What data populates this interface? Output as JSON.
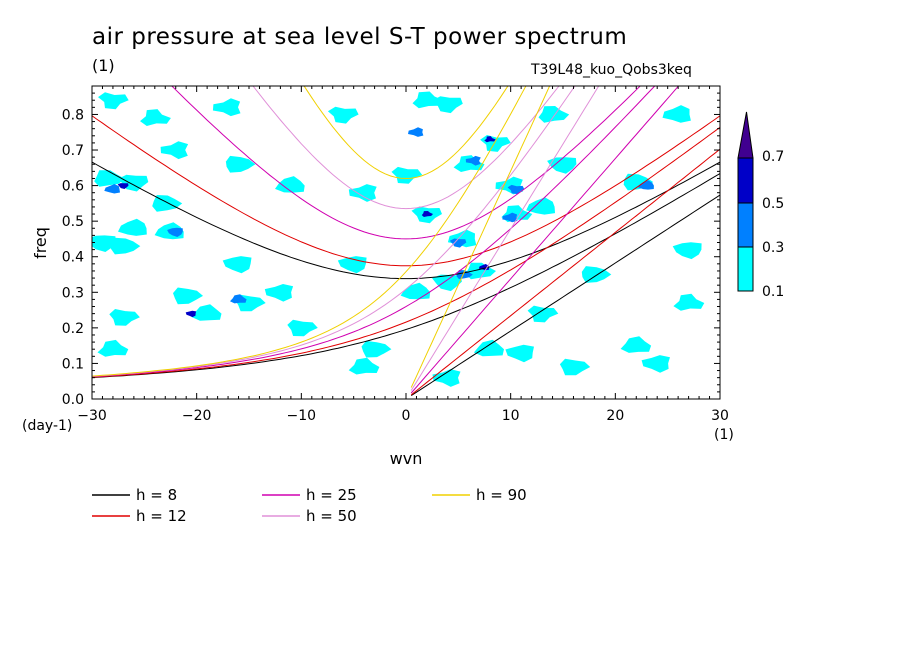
{
  "title": "air pressure at sea level S-T power spectrum",
  "title_unit": "(1)",
  "case_label": "T39L48_kuo_Qobs3keq",
  "chart_data": {
    "type": "heatmap",
    "xlabel": "wvn",
    "ylabel": "freq",
    "x_unit": "(1)",
    "y_unit": "(day-1)",
    "xlim": [
      -30,
      30
    ],
    "ylim": [
      0,
      0.88
    ],
    "x_ticks": [
      -30,
      -20,
      -10,
      0,
      10,
      20,
      30
    ],
    "x_tick_labels": [
      "-30",
      "-20",
      "-10",
      "0",
      "10",
      "20",
      "30"
    ],
    "y_ticks": [
      0,
      0.1,
      0.2,
      0.3,
      0.4,
      0.5,
      0.6,
      0.7,
      0.8
    ],
    "y_tick_labels": [
      "0.0",
      "0.1",
      "0.2",
      "0.3",
      "0.4",
      "0.5",
      "0.6",
      "0.7",
      "0.8"
    ],
    "colorbar": {
      "levels": [
        0.1,
        0.3,
        0.5,
        0.7
      ],
      "level_labels": [
        "0.1",
        "0.3",
        "0.5",
        "0.7"
      ],
      "colors": [
        "#00ffff",
        "#0080ff",
        "#0000c8",
        "#400090"
      ]
    },
    "contour_patches": [
      {
        "x": -28,
        "y": 0.84,
        "level": 1
      },
      {
        "x": -24,
        "y": 0.79,
        "level": 1
      },
      {
        "x": -17,
        "y": 0.82,
        "level": 1
      },
      {
        "x": -6,
        "y": 0.8,
        "level": 1
      },
      {
        "x": 2,
        "y": 0.84,
        "level": 1
      },
      {
        "x": 1,
        "y": 0.75,
        "level": 2
      },
      {
        "x": 4,
        "y": 0.83,
        "level": 1
      },
      {
        "x": 14,
        "y": 0.8,
        "level": 1
      },
      {
        "x": 26,
        "y": 0.8,
        "level": 1
      },
      {
        "x": -26,
        "y": 0.61,
        "level": 1
      },
      {
        "x": -28.5,
        "y": 0.62,
        "level": 1
      },
      {
        "x": -28,
        "y": 0.59,
        "level": 2
      },
      {
        "x": -27,
        "y": 0.6,
        "level": 3
      },
      {
        "x": -23,
        "y": 0.55,
        "level": 1
      },
      {
        "x": -26,
        "y": 0.48,
        "level": 1
      },
      {
        "x": -29,
        "y": 0.44,
        "level": 1
      },
      {
        "x": -27,
        "y": 0.43,
        "level": 1
      },
      {
        "x": -22.5,
        "y": 0.47,
        "level": 1
      },
      {
        "x": -22,
        "y": 0.47,
        "level": 2
      },
      {
        "x": -16,
        "y": 0.66,
        "level": 1
      },
      {
        "x": -11,
        "y": 0.6,
        "level": 1
      },
      {
        "x": -16,
        "y": 0.38,
        "level": 1
      },
      {
        "x": -21,
        "y": 0.29,
        "level": 1
      },
      {
        "x": -19,
        "y": 0.24,
        "level": 1
      },
      {
        "x": -20.5,
        "y": 0.24,
        "level": 3
      },
      {
        "x": -15,
        "y": 0.27,
        "level": 1
      },
      {
        "x": -16,
        "y": 0.28,
        "level": 2
      },
      {
        "x": -12,
        "y": 0.3,
        "level": 1
      },
      {
        "x": -27,
        "y": 0.23,
        "level": 1
      },
      {
        "x": -28,
        "y": 0.14,
        "level": 1
      },
      {
        "x": -4,
        "y": 0.58,
        "level": 1
      },
      {
        "x": 0,
        "y": 0.63,
        "level": 1
      },
      {
        "x": 6,
        "y": 0.66,
        "level": 1
      },
      {
        "x": 6.5,
        "y": 0.67,
        "level": 2
      },
      {
        "x": 8.5,
        "y": 0.72,
        "level": 1
      },
      {
        "x": 8,
        "y": 0.73,
        "level": 3
      },
      {
        "x": 10,
        "y": 0.6,
        "level": 1
      },
      {
        "x": 10.5,
        "y": 0.59,
        "level": 2
      },
      {
        "x": 10.5,
        "y": 0.52,
        "level": 1
      },
      {
        "x": 10,
        "y": 0.51,
        "level": 2
      },
      {
        "x": 2,
        "y": 0.52,
        "level": 1
      },
      {
        "x": 2,
        "y": 0.52,
        "level": 3
      },
      {
        "x": 5.5,
        "y": 0.45,
        "level": 1
      },
      {
        "x": 5,
        "y": 0.44,
        "level": 2
      },
      {
        "x": 7,
        "y": 0.36,
        "level": 1
      },
      {
        "x": 7.5,
        "y": 0.37,
        "level": 3
      },
      {
        "x": 4,
        "y": 0.33,
        "level": 1
      },
      {
        "x": 5.5,
        "y": 0.35,
        "level": 2
      },
      {
        "x": 13,
        "y": 0.54,
        "level": 1
      },
      {
        "x": 15,
        "y": 0.66,
        "level": 1
      },
      {
        "x": 22,
        "y": 0.61,
        "level": 1
      },
      {
        "x": 23,
        "y": 0.6,
        "level": 2
      },
      {
        "x": 27,
        "y": 0.42,
        "level": 1
      },
      {
        "x": 18,
        "y": 0.35,
        "level": 1
      },
      {
        "x": 1,
        "y": 0.3,
        "level": 1
      },
      {
        "x": -5,
        "y": 0.38,
        "level": 1
      },
      {
        "x": -3,
        "y": 0.14,
        "level": 1
      },
      {
        "x": 8,
        "y": 0.14,
        "level": 1
      },
      {
        "x": 11,
        "y": 0.13,
        "level": 1
      },
      {
        "x": 16,
        "y": 0.09,
        "level": 1
      },
      {
        "x": 22,
        "y": 0.15,
        "level": 1
      },
      {
        "x": 24,
        "y": 0.1,
        "level": 1
      },
      {
        "x": -10,
        "y": 0.2,
        "level": 1
      },
      {
        "x": -4,
        "y": 0.09,
        "level": 1
      },
      {
        "x": 4,
        "y": 0.06,
        "level": 1
      },
      {
        "x": 13,
        "y": 0.24,
        "level": 1
      },
      {
        "x": 27,
        "y": 0.27,
        "level": 1
      },
      {
        "x": -22,
        "y": 0.7,
        "level": 1
      }
    ],
    "series": [
      {
        "name": "h =  8",
        "color": "#000000"
      },
      {
        "name": "h = 12",
        "color": "#e00000"
      },
      {
        "name": "h = 25",
        "color": "#d000b0"
      },
      {
        "name": "h = 50",
        "color": "#e090d8"
      },
      {
        "name": "h = 90",
        "color": "#f0d000"
      }
    ]
  }
}
